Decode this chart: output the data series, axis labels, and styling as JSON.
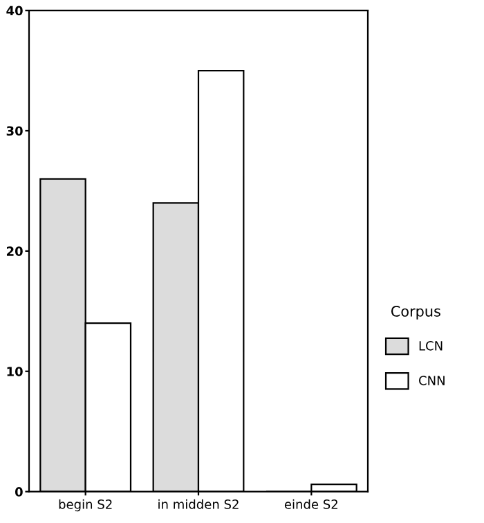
{
  "chart_data": {
    "type": "bar",
    "categories": [
      "begin S2",
      "in midden S2",
      "einde S2"
    ],
    "series": [
      {
        "name": "LCN",
        "color": "#dcdcdc",
        "values": [
          26,
          24,
          0
        ]
      },
      {
        "name": "CNN",
        "color": "#ffffff",
        "values": [
          14,
          35,
          0.6
        ]
      }
    ],
    "ylim": [
      0,
      40
    ],
    "yticks": [
      0,
      10,
      20,
      30,
      40
    ],
    "grid": false,
    "legend": "right",
    "legend_title": "Corpus"
  }
}
